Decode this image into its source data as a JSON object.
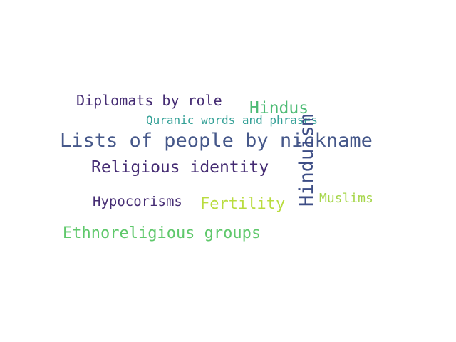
{
  "words": {
    "lists_nickname": {
      "text": "Lists of people by nickname",
      "color": "#46588a"
    },
    "religious_identity": {
      "text": "Religious identity",
      "color": "#452c73"
    },
    "diplomats_role": {
      "text": "Diplomats by role",
      "color": "#452c73"
    },
    "hindus": {
      "text": "Hindus",
      "color": "#4dbb74"
    },
    "quranic": {
      "text": "Quranic words and phrases",
      "color": "#33a096"
    },
    "hypocorisms": {
      "text": "Hypocorisms",
      "color": "#452c73"
    },
    "fertility": {
      "text": "Fertility",
      "color": "#b9dc3f"
    },
    "muslims": {
      "text": "Muslims",
      "color": "#a6d64a"
    },
    "ethnoreligious": {
      "text": "Ethnoreligious groups",
      "color": "#5fc86b"
    },
    "hinduism": {
      "text": "Hinduism",
      "color": "#3d4d85"
    }
  }
}
